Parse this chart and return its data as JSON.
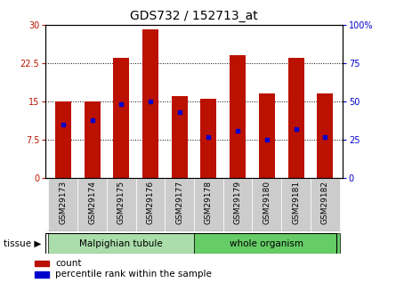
{
  "title": "GDS732 / 152713_at",
  "samples": [
    "GSM29173",
    "GSM29174",
    "GSM29175",
    "GSM29176",
    "GSM29177",
    "GSM29178",
    "GSM29179",
    "GSM29180",
    "GSM29181",
    "GSM29182"
  ],
  "counts": [
    15.0,
    15.0,
    23.5,
    29.0,
    16.0,
    15.5,
    24.0,
    16.5,
    23.5,
    16.5
  ],
  "percentiles": [
    35,
    38,
    48,
    50,
    43,
    27,
    31,
    25,
    32,
    27
  ],
  "left_ylim": [
    0,
    30
  ],
  "right_ylim": [
    0,
    100
  ],
  "left_yticks": [
    0,
    7.5,
    15,
    22.5,
    30
  ],
  "right_yticks": [
    0,
    25,
    50,
    75,
    100
  ],
  "left_ytick_labels": [
    "0",
    "7.5",
    "15",
    "22.5",
    "30"
  ],
  "right_ytick_labels": [
    "0",
    "25",
    "50",
    "75",
    "100%"
  ],
  "bar_color": "#bb1100",
  "marker_color": "#0000cc",
  "bg_plot": "#ffffff",
  "tissue_groups": [
    {
      "label": "Malpighian tubule",
      "start": 0,
      "end": 5,
      "color": "#aaddaa"
    },
    {
      "label": "whole organism",
      "start": 5,
      "end": 10,
      "color": "#66cc66"
    }
  ],
  "tissue_label": "tissue",
  "legend_count_label": "count",
  "legend_percentile_label": "percentile rank within the sample",
  "bar_width": 0.55,
  "title_fontsize": 10,
  "tick_fontsize": 7,
  "xtick_fontsize": 6.5
}
